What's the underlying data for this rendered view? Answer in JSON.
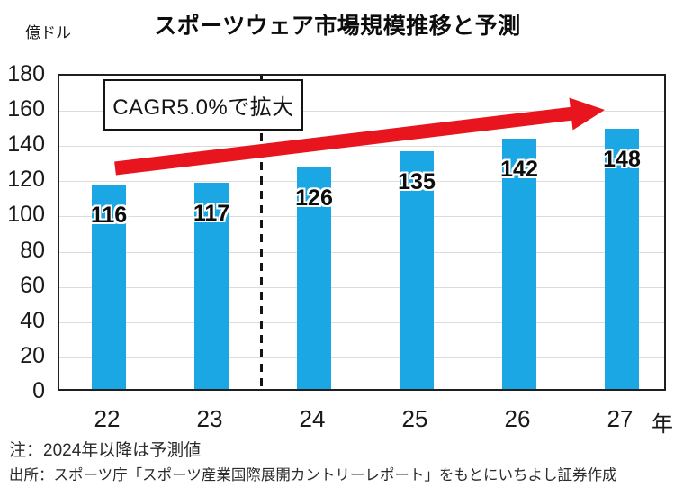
{
  "title": "スポーツウェア市場規模推移と予測",
  "y_axis_unit": "億ドル",
  "x_axis_unit": "年",
  "annotation": {
    "text": "CAGR5.0%で拡大"
  },
  "notes": {
    "note": "注：2024年以降は予測値",
    "source": "出所：スポーツ庁「スポーツ産業国際展開カントリーレポート」をもとにいちよし証券作成"
  },
  "colors": {
    "bar": "#1ba7e3",
    "arrow": "#e8141e",
    "divider": "#141414",
    "grid": "#dcdcdc"
  },
  "chart_data": {
    "type": "bar",
    "title": "スポーツウェア市場規模推移と予測",
    "categories": [
      "22",
      "23",
      "24",
      "25",
      "26",
      "27"
    ],
    "values": [
      116,
      117,
      126,
      135,
      142,
      148
    ],
    "xlabel": "年",
    "ylabel": "億ドル",
    "ylim": [
      0,
      180
    ],
    "ytick_step": 20,
    "grid": true,
    "legend": "none",
    "forecast_divider_between": [
      "23",
      "24"
    ],
    "annotation": "CAGR5.0%で拡大",
    "trend_arrow": "rising, labeled CAGR 5.0%"
  }
}
